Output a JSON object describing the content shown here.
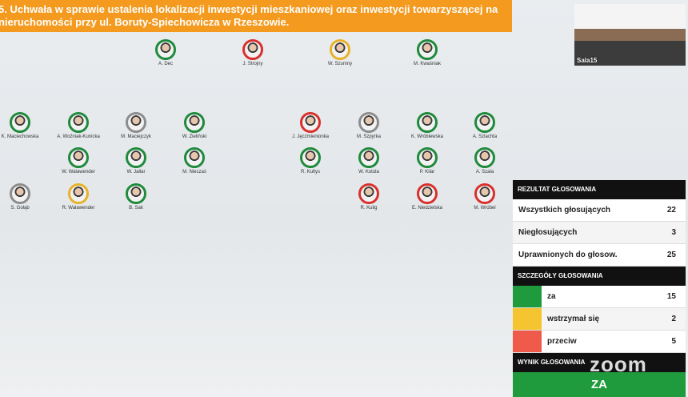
{
  "header": {
    "title_line1": "5. Uchwała w sprawie ustalenia lokalizacji inwestycji mieszkaniowej oraz inwestycji towarzyszącej na",
    "title_line2": "nieruchomości przy ul. Boruty-Spiechowicza w Rzeszowie."
  },
  "video": {
    "label": "Sala15"
  },
  "members": [
    {
      "name": "A. Dec",
      "color": "#1f8a3c"
    },
    {
      "name": "J. Strojny",
      "color": "#d9302c"
    },
    {
      "name": "W. Szumny",
      "color": "#e8b12a"
    },
    {
      "name": "M. Kwaśniak",
      "color": "#1f8a3c"
    },
    {
      "name": "K. Maciechowska",
      "color": "#1f8a3c"
    },
    {
      "name": "A. Woźniak-Kunicka",
      "color": "#1f8a3c"
    },
    {
      "name": "M. Maciejczyk",
      "color": "#8c8c8c"
    },
    {
      "name": "W. Zieliński",
      "color": "#1f8a3c"
    },
    {
      "name": "J. Jęczmienionka",
      "color": "#d9302c"
    },
    {
      "name": "M. Szpyrka",
      "color": "#8c8c8c"
    },
    {
      "name": "K. Wróblewska",
      "color": "#1f8a3c"
    },
    {
      "name": "A. Szlachta",
      "color": "#1f8a3c"
    },
    {
      "name": "W. Walawender",
      "color": "#1f8a3c"
    },
    {
      "name": "W. Jallar",
      "color": "#1f8a3c"
    },
    {
      "name": "M. Nieczaś",
      "color": "#1f8a3c"
    },
    {
      "name": "R. Kultys",
      "color": "#1f8a3c"
    },
    {
      "name": "W. Kotula",
      "color": "#1f8a3c"
    },
    {
      "name": "P. Kilar",
      "color": "#1f8a3c"
    },
    {
      "name": "A. Szala",
      "color": "#1f8a3c"
    },
    {
      "name": "S. Gołąb",
      "color": "#8c8c8c"
    },
    {
      "name": "R. Walawender",
      "color": "#e8b12a"
    },
    {
      "name": "B. Sak",
      "color": "#1f8a3c"
    },
    {
      "name": "R. Kulig",
      "color": "#d9302c"
    },
    {
      "name": "E. Niedzielska",
      "color": "#d9302c"
    },
    {
      "name": "M. Wróbel",
      "color": "#d9302c"
    }
  ],
  "results": {
    "header": "REZULTAT GŁOSOWANIA",
    "rows": [
      {
        "label": "Wszystkich głosujących",
        "value": 22
      },
      {
        "label": "Niegłosujących",
        "value": 3
      },
      {
        "label": "Uprawnionych do głosow.",
        "value": 25
      }
    ],
    "details_header": "SZCZEGÓŁY GŁOSOWANIA",
    "details": [
      {
        "label": "za",
        "value": 15,
        "color": "#1f9a3c"
      },
      {
        "label": "wstrzymał się",
        "value": 2,
        "color": "#f5c531"
      },
      {
        "label": "przeciw",
        "value": 5,
        "color": "#ef5a4a"
      }
    ],
    "outcome_header": "WYNIK GŁOSOWANIA",
    "outcome": "ZA"
  },
  "overlay": {
    "logo": "zoom"
  }
}
